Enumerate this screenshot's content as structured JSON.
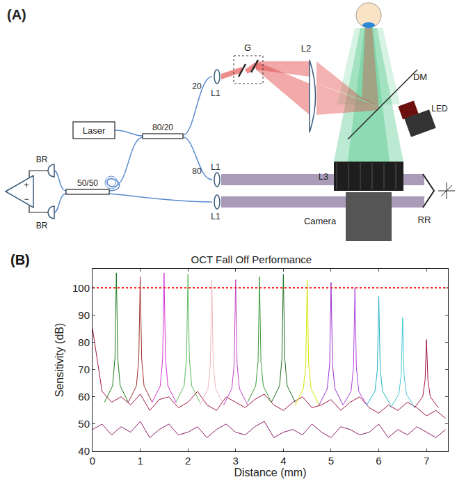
{
  "diagram": {
    "label": "(A)",
    "laser": "Laser",
    "coupler_1": "80/20",
    "coupler_2": "50/50",
    "detectors": [
      "BR",
      "BR"
    ],
    "amplifier": [
      "+",
      "−"
    ],
    "sample_port": "20",
    "reference_port": "80",
    "lenses": {
      "collimator": "L1",
      "scan": "L2",
      "camera": "L3"
    },
    "galvo": "G",
    "mirror": "DM",
    "led": "LED",
    "camera": "Camera",
    "retroreflector": "RR"
  },
  "chart_data": {
    "type": "line",
    "title": "OCT Fall Off Performance",
    "annotations": [
      "(B)"
    ],
    "x_label": "Distance (mm)",
    "y_label": "Sensitivity (dB)",
    "xlim": [
      0,
      7.45
    ],
    "xticks": [
      0,
      1,
      2,
      3,
      4,
      5,
      6,
      7
    ],
    "ylim": [
      40,
      107
    ],
    "yticks": [
      40,
      50,
      60,
      70,
      80,
      90,
      100
    ],
    "grid": false,
    "series": [
      {
        "color": "#a0153e",
        "line_style": "solid",
        "x": [
          0,
          0.2,
          0.4,
          0.6,
          0.8,
          1.0,
          1.2,
          1.4,
          1.6,
          1.8,
          2.0,
          2.2,
          2.4,
          2.6,
          2.8,
          3.0,
          3.2,
          3.4,
          3.6,
          3.8,
          4.0,
          4.2,
          4.4,
          4.6,
          4.8,
          5.0,
          5.2,
          5.4,
          5.6,
          5.8,
          6.0,
          6.2,
          6.4,
          6.6,
          6.8,
          7.0,
          7.2,
          7.4
        ],
        "values": [
          85,
          62,
          58,
          60,
          57,
          61,
          55,
          59,
          60,
          56,
          58,
          62,
          57,
          55,
          60,
          58,
          56,
          59,
          61,
          57,
          55,
          58,
          60,
          56,
          57,
          59,
          55,
          58,
          60,
          56,
          54,
          57,
          55,
          58,
          56,
          53,
          55,
          52
        ]
      },
      {
        "color": "#8b1a6a",
        "line_style": "solid",
        "x": [
          0,
          0.2,
          0.4,
          0.6,
          0.8,
          1.0,
          1.2,
          1.4,
          1.6,
          1.8,
          2.0,
          2.2,
          2.4,
          2.6,
          2.8,
          3.0,
          3.2,
          3.4,
          3.6,
          3.8,
          4.0,
          4.2,
          4.4,
          4.6,
          4.8,
          5.0,
          5.2,
          5.4,
          5.6,
          5.8,
          6.0,
          6.2,
          6.4,
          6.6,
          6.8,
          7.0,
          7.2,
          7.4
        ],
        "values": [
          48,
          50,
          46,
          49,
          47,
          51,
          45,
          48,
          50,
          46,
          47,
          49,
          45,
          48,
          50,
          47,
          46,
          49,
          51,
          45,
          47,
          48,
          46,
          50,
          47,
          45,
          49,
          48,
          46,
          47,
          50,
          45,
          48,
          46,
          49,
          47,
          45,
          48
        ]
      },
      {
        "color": "#1b7a1b",
        "line_style": "solid",
        "x": [
          0.25,
          0.42,
          0.47,
          0.5,
          0.53,
          0.58,
          0.75
        ],
        "values": [
          58,
          64,
          74,
          105.5,
          74,
          64,
          58
        ]
      },
      {
        "color": "#a0302a",
        "line_style": "solid",
        "x": [
          0.75,
          0.92,
          0.97,
          1.0,
          1.03,
          1.08,
          1.25
        ],
        "values": [
          58,
          64,
          74,
          104,
          74,
          64,
          58
        ]
      },
      {
        "color": "#d633d6",
        "line_style": "solid",
        "x": [
          1.25,
          1.42,
          1.47,
          1.5,
          1.53,
          1.58,
          1.75
        ],
        "values": [
          58,
          64,
          74,
          105.5,
          74,
          64,
          58
        ]
      },
      {
        "color": "#5cb85c",
        "line_style": "solid",
        "x": [
          1.75,
          1.92,
          1.97,
          2.0,
          2.03,
          2.08,
          2.25
        ],
        "values": [
          58,
          64,
          74,
          105,
          74,
          64,
          58
        ]
      },
      {
        "color": "#f0b8c0",
        "line_style": "solid",
        "x": [
          2.25,
          2.42,
          2.47,
          2.5,
          2.53,
          2.58,
          2.75
        ],
        "values": [
          57,
          63,
          72,
          103,
          72,
          63,
          57
        ]
      },
      {
        "color": "#c040c0",
        "line_style": "solid",
        "x": [
          2.75,
          2.92,
          2.97,
          3.0,
          3.03,
          3.08,
          3.25
        ],
        "values": [
          57,
          63,
          72,
          103,
          72,
          63,
          57
        ]
      },
      {
        "color": "#3a9a3a",
        "line_style": "solid",
        "x": [
          3.25,
          3.42,
          3.47,
          3.5,
          3.53,
          3.58,
          3.75
        ],
        "values": [
          58,
          64,
          73,
          104,
          73,
          64,
          58
        ]
      },
      {
        "color": "#1e6b1e",
        "line_style": "solid",
        "x": [
          3.75,
          3.92,
          3.97,
          4.0,
          4.03,
          4.08,
          4.25
        ],
        "values": [
          58,
          64,
          74,
          105,
          74,
          64,
          58
        ]
      },
      {
        "color": "#d4e600",
        "line_style": "solid",
        "x": [
          4.25,
          4.42,
          4.47,
          4.5,
          4.53,
          4.58,
          4.75
        ],
        "values": [
          57,
          63,
          72,
          103,
          72,
          63,
          57
        ]
      },
      {
        "color": "#9b30d0",
        "line_style": "solid",
        "x": [
          4.75,
          4.92,
          4.97,
          5.0,
          5.03,
          5.08,
          5.25
        ],
        "values": [
          57,
          63,
          72,
          102,
          72,
          63,
          57
        ]
      },
      {
        "color": "#b040e0",
        "line_style": "solid",
        "x": [
          5.25,
          5.42,
          5.47,
          5.5,
          5.53,
          5.58,
          5.75
        ],
        "values": [
          57,
          62,
          71,
          100,
          71,
          62,
          57
        ]
      },
      {
        "color": "#20b0c0",
        "line_style": "solid",
        "x": [
          5.75,
          5.92,
          5.97,
          6.0,
          6.03,
          6.08,
          6.25
        ],
        "values": [
          57,
          62,
          70,
          97,
          70,
          62,
          57
        ]
      },
      {
        "color": "#40c8d0",
        "line_style": "solid",
        "x": [
          6.25,
          6.42,
          6.47,
          6.5,
          6.53,
          6.58,
          6.75
        ],
        "values": [
          56,
          61,
          68,
          89,
          68,
          61,
          56
        ]
      },
      {
        "color": "#a0153e",
        "line_style": "solid",
        "x": [
          6.75,
          6.92,
          6.97,
          7.0,
          7.03,
          7.08,
          7.25
        ],
        "values": [
          56,
          60,
          66,
          81,
          66,
          60,
          56
        ]
      },
      {
        "color": "#ff0000",
        "line_style": "dotted",
        "x": [
          0,
          7.45
        ],
        "values": [
          100,
          100
        ]
      }
    ]
  }
}
